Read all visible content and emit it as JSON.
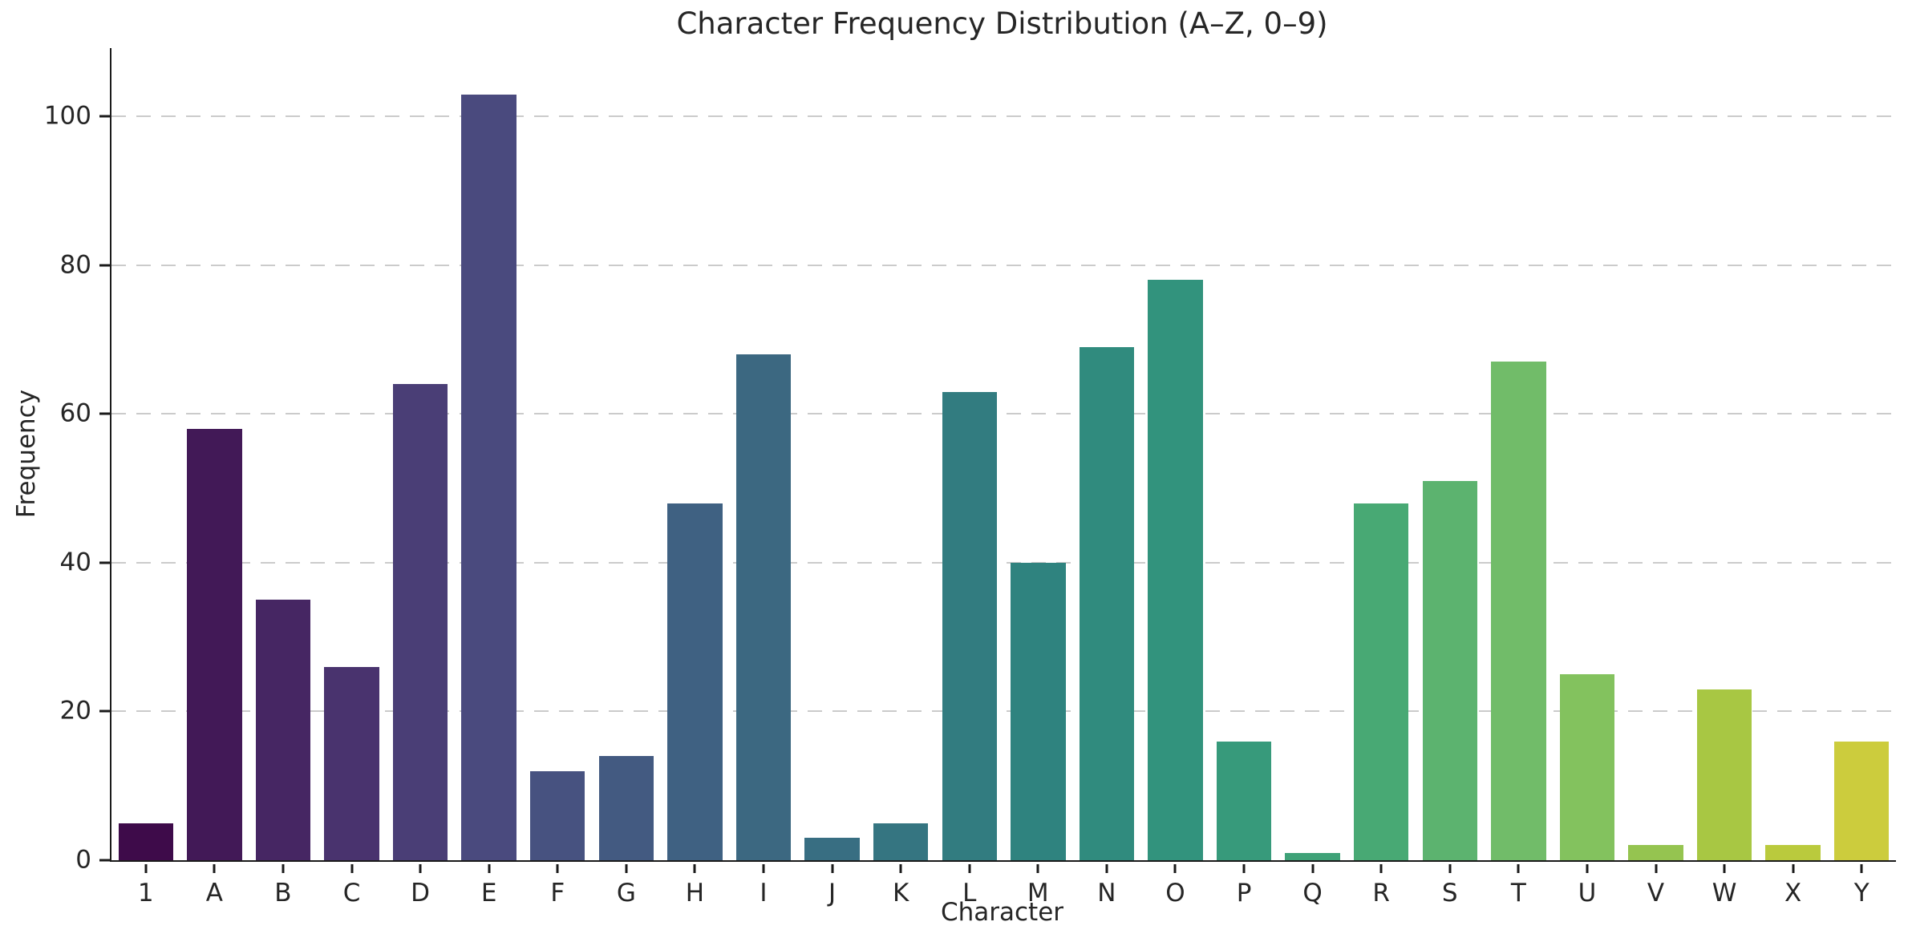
{
  "colors": {
    "background": "#ffffff",
    "grid": "#cbcbcb",
    "axis": "#1a1a1a",
    "text": "#262626"
  },
  "chart_data": {
    "type": "bar",
    "title": "Character Frequency Distribution (A–Z, 0–9)",
    "xlabel": "Character",
    "ylabel": "Frequency",
    "categories": [
      "1",
      "A",
      "B",
      "C",
      "D",
      "E",
      "F",
      "G",
      "H",
      "I",
      "J",
      "K",
      "L",
      "M",
      "N",
      "O",
      "P",
      "Q",
      "R",
      "S",
      "T",
      "U",
      "V",
      "W",
      "X",
      "Y"
    ],
    "values": [
      5,
      58,
      35,
      26,
      64,
      103,
      12,
      14,
      48,
      68,
      3,
      5,
      63,
      40,
      69,
      78,
      16,
      1,
      48,
      51,
      67,
      25,
      2,
      23,
      2,
      16
    ],
    "bar_colors": [
      "#3e0b4a",
      "#421957",
      "#462663",
      "#49336e",
      "#4a3e76",
      "#4a4a7e",
      "#475280",
      "#435a81",
      "#3f6182",
      "#3c6881",
      "#386e82",
      "#357581",
      "#327c80",
      "#2f837f",
      "#308b7e",
      "#32937d",
      "#379a7b",
      "#3fa278",
      "#48a974",
      "#5cb36f",
      "#71bc69",
      "#83c25e",
      "#95c450",
      "#a8c743",
      "#baca3d",
      "#cccc3d"
    ],
    "ylim": [
      0,
      109.2
    ],
    "yticks": [
      0,
      20,
      40,
      60,
      80,
      100
    ],
    "gridlines": [
      20,
      40,
      60,
      80,
      100
    ],
    "grid_style": "dashed horizontal",
    "legend": "none"
  }
}
